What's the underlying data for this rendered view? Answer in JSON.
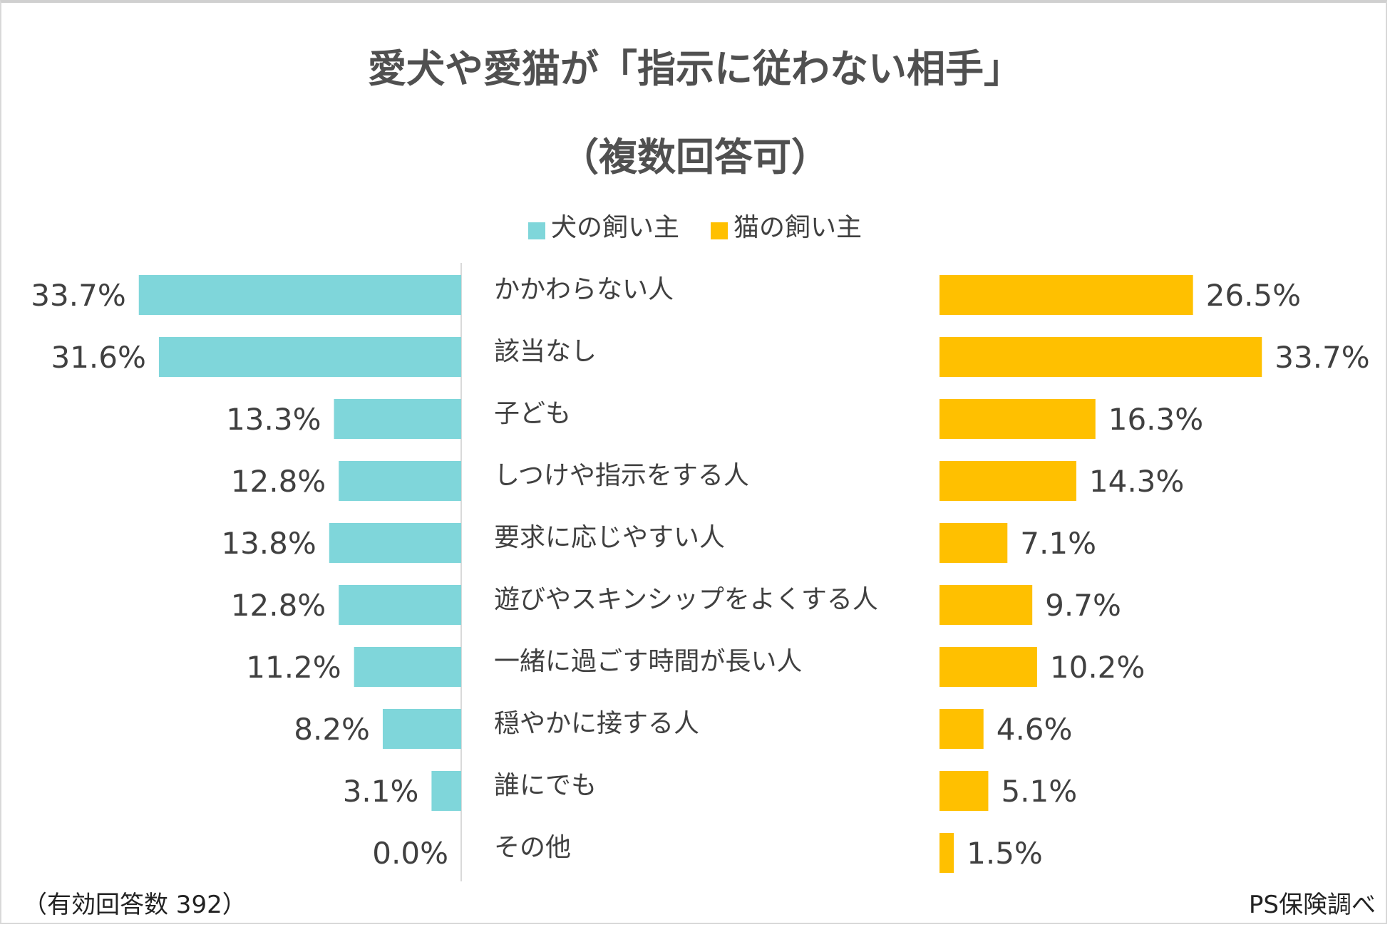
{
  "chart_data": {
    "type": "bar",
    "orientation": "horizontal-butterfly",
    "title": "愛犬や愛猫が「指示に従わない相手」",
    "subtitle": "（複数回答可）",
    "categories": [
      "かかわらない人",
      "該当なし",
      "子ども",
      "しつけや指示をする人",
      "要求に応じやすい人",
      "遊びやスキンシップをよくする人",
      "一緒に過ごす時間が長い人",
      "穏やかに接する人",
      "誰にでも",
      "その他"
    ],
    "series": [
      {
        "name": "犬の飼い主",
        "color": "#7fd6da",
        "side": "left",
        "values": [
          33.7,
          31.6,
          13.3,
          12.8,
          13.8,
          12.8,
          11.2,
          8.2,
          3.1,
          0.0
        ]
      },
      {
        "name": "猫の飼い主",
        "color": "#ffc000",
        "side": "right",
        "values": [
          26.5,
          33.7,
          16.3,
          14.3,
          7.1,
          9.7,
          10.2,
          4.6,
          5.1,
          1.5
        ]
      }
    ],
    "value_format": "%",
    "legend_position": "top",
    "grid": false
  },
  "footer": {
    "note": "（有効回答数 392）",
    "source": "PS保険調べ"
  }
}
